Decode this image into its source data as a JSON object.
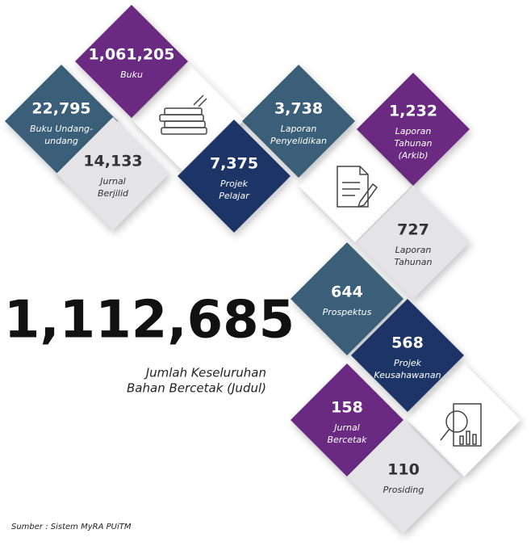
{
  "tiles": [
    {
      "value": "1,061,205",
      "label": [
        "Buku"
      ]
    },
    {
      "value": "22,795",
      "label": [
        "Buku Undang-",
        "undang"
      ]
    },
    {
      "value": "14,133",
      "label": [
        "Jurnal",
        "Berjilid"
      ]
    },
    {
      "value": "7,375",
      "label": [
        "Projek",
        "Pelajar"
      ]
    },
    {
      "value": "3,738",
      "label": [
        "Laporan",
        "Penyelidikan"
      ]
    },
    {
      "value": "1,232",
      "label": [
        "Laporan",
        "Tahunan",
        "(Arkib)"
      ]
    },
    {
      "value": "727",
      "label": [
        "Laporan",
        "Tahunan"
      ]
    },
    {
      "value": "644",
      "label": [
        "Prospektus"
      ]
    },
    {
      "value": "568",
      "label": [
        "Projek",
        "Keusahawanan"
      ]
    },
    {
      "value": "158",
      "label": [
        "Jurnal",
        "Bercetak"
      ]
    },
    {
      "value": "110",
      "label": [
        "Prosiding"
      ]
    }
  ],
  "total": {
    "value": "1,112,685",
    "caption": [
      "Jumlah Keseluruhan",
      "Bahan Bercetak (Judul)"
    ]
  },
  "source": "Sumber : Sistem MyRA PUiTM"
}
